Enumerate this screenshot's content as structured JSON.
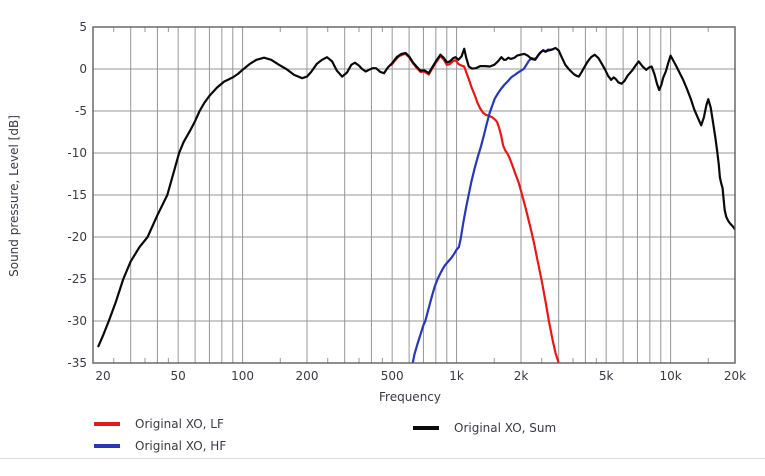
{
  "figure": {
    "xlabel": "Frequency",
    "ylabel": "Sound pressure, Level  [dB]"
  },
  "legend": {
    "left": [
      {
        "label": "Original XO, LF",
        "color": "#e81717"
      },
      {
        "label": "Original XO, HF",
        "color": "#2837b8"
      }
    ],
    "right": [
      {
        "label": "Original XO, Sum",
        "color": "#0a0a0a"
      }
    ]
  },
  "chart_data": {
    "type": "line",
    "title": "",
    "xlabel": "Frequency",
    "ylabel": "Sound pressure, Level  [dB]",
    "x_scale": "log",
    "xlim": [
      20,
      20000
    ],
    "ylim": [
      -35,
      5
    ],
    "grid": true,
    "legend_position": "bottom",
    "colors": {
      "grid": "#979797",
      "border": "#5f5f5f",
      "text": "#3a3a46",
      "background": "#ffffff"
    },
    "y_ticks": [
      5,
      0,
      -5,
      -10,
      -15,
      -20,
      -25,
      -30,
      -35
    ],
    "x_ticks": [
      {
        "f": 20,
        "label": "20"
      },
      {
        "f": 50,
        "label": "50"
      },
      {
        "f": 100,
        "label": "100"
      },
      {
        "f": 200,
        "label": "200"
      },
      {
        "f": 500,
        "label": "500"
      },
      {
        "f": 1000,
        "label": "1k"
      },
      {
        "f": 2000,
        "label": "2k"
      },
      {
        "f": 5000,
        "label": "5k"
      },
      {
        "f": 10000,
        "label": "10k"
      },
      {
        "f": 20000,
        "label": "20k"
      }
    ],
    "grid_freqs": [
      30,
      40,
      50,
      60,
      70,
      80,
      90,
      100,
      200,
      300,
      400,
      500,
      600,
      700,
      800,
      900,
      1000,
      2000,
      3000,
      4000,
      5000,
      6000,
      7000,
      8000,
      9000,
      10000
    ],
    "minor_tick_freqs": [
      25,
      35,
      45,
      150,
      250,
      350,
      450,
      1500,
      2500,
      3500,
      4500,
      15000
    ],
    "series": [
      {
        "name": "Original XO, LF",
        "color": "#e81717",
        "points": [
          [
            497,
            0.5
          ],
          [
            515,
            1.0
          ],
          [
            540,
            1.55
          ],
          [
            565,
            1.75
          ],
          [
            578,
            1.8
          ],
          [
            600,
            1.4
          ],
          [
            625,
            0.7
          ],
          [
            650,
            0.15
          ],
          [
            678,
            -0.35
          ],
          [
            705,
            -0.3
          ],
          [
            722,
            -0.45
          ],
          [
            742,
            -0.65
          ],
          [
            765,
            -0.05
          ],
          [
            800,
            0.75
          ],
          [
            840,
            1.55
          ],
          [
            872,
            1.1
          ],
          [
            900,
            0.5
          ],
          [
            930,
            0.6
          ],
          [
            965,
            0.95
          ],
          [
            990,
            1.05
          ],
          [
            1020,
            0.6
          ],
          [
            1055,
            0.4
          ],
          [
            1085,
            0.3
          ],
          [
            1110,
            -0.4
          ],
          [
            1140,
            -1.2
          ],
          [
            1175,
            -2.2
          ],
          [
            1215,
            -3.1
          ],
          [
            1255,
            -4.1
          ],
          [
            1290,
            -4.7
          ],
          [
            1330,
            -5.2
          ],
          [
            1370,
            -5.45
          ],
          [
            1420,
            -5.6
          ],
          [
            1465,
            -5.75
          ],
          [
            1510,
            -6.0
          ],
          [
            1545,
            -6.3
          ],
          [
            1580,
            -7.0
          ],
          [
            1615,
            -7.9
          ],
          [
            1650,
            -9.1
          ],
          [
            1690,
            -9.7
          ],
          [
            1730,
            -10.1
          ],
          [
            1770,
            -10.6
          ],
          [
            1830,
            -11.6
          ],
          [
            1890,
            -12.6
          ],
          [
            1950,
            -13.5
          ],
          [
            2020,
            -14.9
          ],
          [
            2100,
            -16.5
          ],
          [
            2200,
            -18.6
          ],
          [
            2300,
            -20.7
          ],
          [
            2400,
            -23.0
          ],
          [
            2500,
            -25.2
          ],
          [
            2600,
            -27.6
          ],
          [
            2700,
            -30.0
          ],
          [
            2800,
            -32.1
          ],
          [
            2900,
            -33.8
          ],
          [
            3000,
            -35.0
          ],
          [
            3050,
            -35.6
          ]
        ]
      },
      {
        "name": "Original XO, HF",
        "color": "#2837b8",
        "points": [
          [
            617,
            -35.6
          ],
          [
            635,
            -34.0
          ],
          [
            655,
            -32.8
          ],
          [
            678,
            -31.6
          ],
          [
            700,
            -30.5
          ],
          [
            714,
            -30.0
          ],
          [
            735,
            -28.8
          ],
          [
            760,
            -27.4
          ],
          [
            790,
            -25.9
          ],
          [
            815,
            -25.0
          ],
          [
            845,
            -24.2
          ],
          [
            880,
            -23.4
          ],
          [
            915,
            -22.9
          ],
          [
            945,
            -22.5
          ],
          [
            975,
            -22.0
          ],
          [
            1000,
            -21.5
          ],
          [
            1025,
            -21.2
          ],
          [
            1045,
            -20.2
          ],
          [
            1075,
            -18.3
          ],
          [
            1105,
            -16.6
          ],
          [
            1140,
            -14.9
          ],
          [
            1175,
            -13.3
          ],
          [
            1215,
            -11.8
          ],
          [
            1255,
            -10.5
          ],
          [
            1300,
            -9.2
          ],
          [
            1345,
            -7.8
          ],
          [
            1385,
            -6.5
          ],
          [
            1425,
            -5.3
          ],
          [
            1465,
            -4.4
          ],
          [
            1510,
            -3.5
          ],
          [
            1560,
            -2.9
          ],
          [
            1610,
            -2.4
          ],
          [
            1670,
            -1.9
          ],
          [
            1730,
            -1.5
          ],
          [
            1800,
            -1.0
          ],
          [
            1870,
            -0.7
          ],
          [
            1940,
            -0.4
          ],
          [
            2000,
            -0.2
          ],
          [
            2060,
            0.0
          ],
          [
            2120,
            0.5
          ],
          [
            2180,
            1.0
          ],
          [
            2240,
            1.3
          ],
          [
            2300,
            1.2
          ],
          [
            2360,
            1.3
          ],
          [
            2420,
            1.7
          ],
          [
            2480,
            2.0
          ],
          [
            2540,
            2.25
          ],
          [
            2600,
            2.1
          ],
          [
            2670,
            2.3
          ],
          [
            2750,
            2.3
          ],
          [
            2820,
            2.35
          ]
        ]
      },
      {
        "name": "Original XO, Sum",
        "color": "#0a0a0a",
        "points": [
          [
            21.2,
            -33.0
          ],
          [
            22.4,
            -31.6
          ],
          [
            23.7,
            -30.0
          ],
          [
            25.6,
            -27.7
          ],
          [
            27.7,
            -25.0
          ],
          [
            30,
            -22.9
          ],
          [
            33,
            -21.2
          ],
          [
            36,
            -20.0
          ],
          [
            40,
            -17.4
          ],
          [
            44.5,
            -15.0
          ],
          [
            48,
            -12.0
          ],
          [
            50.5,
            -10.0
          ],
          [
            53,
            -8.7
          ],
          [
            57,
            -7.3
          ],
          [
            60,
            -6.2
          ],
          [
            63,
            -5.0
          ],
          [
            66,
            -4.1
          ],
          [
            70,
            -3.2
          ],
          [
            76,
            -2.2
          ],
          [
            82,
            -1.5
          ],
          [
            90,
            -1.0
          ],
          [
            95,
            -0.6
          ],
          [
            100,
            -0.1
          ],
          [
            108,
            0.6
          ],
          [
            116,
            1.1
          ],
          [
            126,
            1.35
          ],
          [
            136,
            1.1
          ],
          [
            148,
            0.5
          ],
          [
            160,
            0.0
          ],
          [
            174,
            -0.7
          ],
          [
            190,
            -1.1
          ],
          [
            200,
            -0.9
          ],
          [
            210,
            -0.3
          ],
          [
            222,
            0.6
          ],
          [
            235,
            1.1
          ],
          [
            248,
            1.4
          ],
          [
            262,
            0.9
          ],
          [
            276,
            -0.2
          ],
          [
            292,
            -0.9
          ],
          [
            308,
            -0.4
          ],
          [
            322,
            0.5
          ],
          [
            335,
            0.75
          ],
          [
            350,
            0.4
          ],
          [
            362,
            0.0
          ],
          [
            376,
            -0.3
          ],
          [
            390,
            -0.1
          ],
          [
            405,
            0.1
          ],
          [
            420,
            0.1
          ],
          [
            440,
            -0.35
          ],
          [
            458,
            -0.5
          ],
          [
            478,
            0.2
          ],
          [
            500,
            0.7
          ],
          [
            525,
            1.4
          ],
          [
            552,
            1.8
          ],
          [
            578,
            1.9
          ],
          [
            600,
            1.5
          ],
          [
            625,
            0.8
          ],
          [
            650,
            0.3
          ],
          [
            678,
            -0.2
          ],
          [
            705,
            -0.15
          ],
          [
            722,
            -0.3
          ],
          [
            742,
            -0.5
          ],
          [
            765,
            0.1
          ],
          [
            800,
            0.9
          ],
          [
            840,
            1.7
          ],
          [
            872,
            1.3
          ],
          [
            900,
            0.8
          ],
          [
            930,
            0.9
          ],
          [
            965,
            1.3
          ],
          [
            990,
            1.4
          ],
          [
            1020,
            1.1
          ],
          [
            1055,
            1.5
          ],
          [
            1085,
            2.4
          ],
          [
            1110,
            1.3
          ],
          [
            1140,
            0.3
          ],
          [
            1180,
            0.05
          ],
          [
            1230,
            0.1
          ],
          [
            1290,
            0.35
          ],
          [
            1360,
            0.35
          ],
          [
            1430,
            0.3
          ],
          [
            1500,
            0.5
          ],
          [
            1560,
            0.9
          ],
          [
            1620,
            1.4
          ],
          [
            1665,
            1.1
          ],
          [
            1700,
            1.1
          ],
          [
            1745,
            1.35
          ],
          [
            1790,
            1.2
          ],
          [
            1850,
            1.3
          ],
          [
            1920,
            1.6
          ],
          [
            1990,
            1.7
          ],
          [
            2070,
            1.8
          ],
          [
            2150,
            1.6
          ],
          [
            2240,
            1.2
          ],
          [
            2330,
            1.1
          ],
          [
            2400,
            1.6
          ],
          [
            2470,
            2.0
          ],
          [
            2540,
            2.2
          ],
          [
            2600,
            2.05
          ],
          [
            2680,
            2.2
          ],
          [
            2780,
            2.3
          ],
          [
            2900,
            2.5
          ],
          [
            3000,
            2.2
          ],
          [
            3100,
            1.4
          ],
          [
            3220,
            0.5
          ],
          [
            3340,
            0.0
          ],
          [
            3430,
            -0.3
          ],
          [
            3550,
            -0.65
          ],
          [
            3660,
            -0.85
          ],
          [
            3730,
            -0.9
          ],
          [
            3830,
            -0.4
          ],
          [
            3950,
            0.2
          ],
          [
            4100,
            0.9
          ],
          [
            4250,
            1.4
          ],
          [
            4420,
            1.7
          ],
          [
            4600,
            1.3
          ],
          [
            4800,
            0.5
          ],
          [
            4950,
            -0.1
          ],
          [
            5100,
            -0.8
          ],
          [
            5280,
            -1.3
          ],
          [
            5420,
            -1.0
          ],
          [
            5550,
            -1.2
          ],
          [
            5700,
            -1.6
          ],
          [
            5900,
            -1.75
          ],
          [
            6100,
            -1.4
          ],
          [
            6300,
            -0.8
          ],
          [
            6600,
            -0.2
          ],
          [
            6900,
            0.5
          ],
          [
            7100,
            0.9
          ],
          [
            7400,
            0.3
          ],
          [
            7700,
            -0.1
          ],
          [
            7950,
            0.2
          ],
          [
            8150,
            0.3
          ],
          [
            8400,
            -0.6
          ],
          [
            8650,
            -1.8
          ],
          [
            8850,
            -2.5
          ],
          [
            9050,
            -1.9
          ],
          [
            9250,
            -1.0
          ],
          [
            9500,
            -0.3
          ],
          [
            9750,
            0.7
          ],
          [
            10000,
            1.6
          ],
          [
            10300,
            1.0
          ],
          [
            10600,
            0.4
          ],
          [
            11000,
            -0.4
          ],
          [
            11400,
            -1.2
          ],
          [
            11900,
            -2.3
          ],
          [
            12400,
            -3.5
          ],
          [
            12900,
            -4.8
          ],
          [
            13400,
            -5.8
          ],
          [
            13900,
            -6.7
          ],
          [
            14300,
            -5.8
          ],
          [
            14700,
            -4.3
          ],
          [
            15000,
            -3.6
          ],
          [
            15400,
            -4.6
          ],
          [
            15800,
            -6.4
          ],
          [
            16200,
            -8.2
          ],
          [
            16500,
            -9.7
          ],
          [
            16800,
            -11.4
          ],
          [
            17000,
            -12.9
          ],
          [
            17200,
            -13.5
          ],
          [
            17500,
            -14.2
          ],
          [
            17700,
            -15.5
          ],
          [
            17900,
            -16.8
          ],
          [
            18200,
            -17.6
          ],
          [
            18600,
            -18.1
          ],
          [
            19000,
            -18.4
          ],
          [
            19500,
            -18.7
          ],
          [
            20000,
            -19.1
          ]
        ]
      }
    ]
  }
}
